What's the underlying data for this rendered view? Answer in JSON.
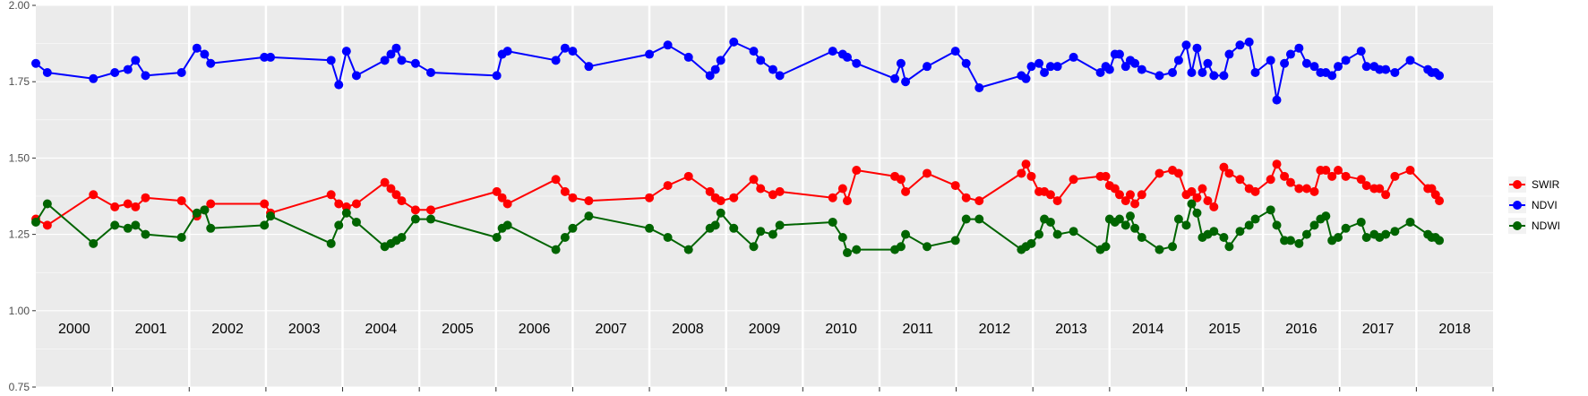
{
  "chart_data": {
    "type": "line",
    "title": "",
    "xlabel": "",
    "ylabel": "",
    "ylim": [
      0.75,
      2.0
    ],
    "y_ticks": [
      "0.75",
      "1.00",
      "1.25",
      "1.50",
      "1.75",
      "2.00"
    ],
    "grid": true,
    "legend_position": "right",
    "year_labels": [
      "2000",
      "2001",
      "2002",
      "2003",
      "2004",
      "2005",
      "2006",
      "2007",
      "2008",
      "2009",
      "2010",
      "2011",
      "2012",
      "2013",
      "2014",
      "2015",
      "2016",
      "2017",
      "2018"
    ],
    "xlim": [
      2000.0,
      2019.0
    ],
    "series": [
      {
        "name": "SWIR",
        "color": "#ff0000",
        "x": [
          2000.0,
          2000.15,
          2000.75,
          2001.03,
          2001.2,
          2001.3,
          2001.43,
          2001.9,
          2002.1,
          2002.2,
          2002.28,
          2002.98,
          2003.06,
          2003.85,
          2003.95,
          2004.05,
          2004.18,
          2004.55,
          2004.63,
          2004.7,
          2004.77,
          2004.95,
          2005.15,
          2006.01,
          2006.08,
          2006.15,
          2006.78,
          2006.9,
          2007.0,
          2007.21,
          2008.0,
          2008.24,
          2008.51,
          2008.79,
          2008.86,
          2008.93,
          2009.1,
          2009.36,
          2009.45,
          2009.61,
          2009.7,
          2010.39,
          2010.52,
          2010.58,
          2010.7,
          2011.2,
          2011.28,
          2011.34,
          2011.62,
          2011.99,
          2012.13,
          2012.3,
          2012.85,
          2012.91,
          2012.98,
          2013.08,
          2013.15,
          2013.23,
          2013.32,
          2013.53,
          2013.88,
          2013.95,
          2014.0,
          2014.07,
          2014.13,
          2014.21,
          2014.27,
          2014.33,
          2014.42,
          2014.65,
          2014.82,
          2014.9,
          2015.0,
          2015.07,
          2015.14,
          2015.21,
          2015.28,
          2015.36,
          2015.49,
          2015.56,
          2015.7,
          2015.82,
          2015.9,
          2016.1,
          2016.18,
          2016.28,
          2016.36,
          2016.47,
          2016.57,
          2016.67,
          2016.75,
          2016.82,
          2016.9,
          2016.98,
          2017.08,
          2017.28,
          2017.35,
          2017.45,
          2017.52,
          2017.6,
          2017.72,
          2017.92,
          2018.15,
          2018.2,
          2018.25,
          2018.3
        ],
        "y": [
          1.3,
          1.28,
          1.38,
          1.34,
          1.35,
          1.34,
          1.37,
          1.36,
          1.31,
          1.33,
          1.35,
          1.35,
          1.32,
          1.38,
          1.35,
          1.34,
          1.35,
          1.42,
          1.4,
          1.38,
          1.36,
          1.33,
          1.33,
          1.39,
          1.37,
          1.35,
          1.43,
          1.39,
          1.37,
          1.36,
          1.37,
          1.41,
          1.44,
          1.39,
          1.37,
          1.36,
          1.37,
          1.43,
          1.4,
          1.38,
          1.39,
          1.37,
          1.4,
          1.36,
          1.46,
          1.44,
          1.43,
          1.39,
          1.45,
          1.41,
          1.37,
          1.36,
          1.45,
          1.48,
          1.44,
          1.39,
          1.39,
          1.38,
          1.36,
          1.43,
          1.44,
          1.44,
          1.41,
          1.4,
          1.38,
          1.36,
          1.38,
          1.35,
          1.38,
          1.45,
          1.46,
          1.45,
          1.38,
          1.39,
          1.37,
          1.4,
          1.36,
          1.34,
          1.47,
          1.45,
          1.43,
          1.4,
          1.39,
          1.43,
          1.48,
          1.44,
          1.42,
          1.4,
          1.4,
          1.39,
          1.46,
          1.46,
          1.44,
          1.46,
          1.44,
          1.43,
          1.41,
          1.4,
          1.4,
          1.38,
          1.44,
          1.46,
          1.4,
          1.4,
          1.38,
          1.36
        ]
      },
      {
        "name": "NDVI",
        "color": "#0000ff",
        "x": [
          2000.0,
          2000.15,
          2000.75,
          2001.03,
          2001.2,
          2001.3,
          2001.43,
          2001.9,
          2002.1,
          2002.2,
          2002.28,
          2002.98,
          2003.06,
          2003.85,
          2003.95,
          2004.05,
          2004.18,
          2004.55,
          2004.63,
          2004.7,
          2004.77,
          2004.95,
          2005.15,
          2006.01,
          2006.08,
          2006.15,
          2006.78,
          2006.9,
          2007.0,
          2007.21,
          2008.0,
          2008.24,
          2008.51,
          2008.79,
          2008.86,
          2008.93,
          2009.1,
          2009.36,
          2009.45,
          2009.61,
          2009.7,
          2010.39,
          2010.52,
          2010.58,
          2010.7,
          2011.2,
          2011.28,
          2011.34,
          2011.62,
          2011.99,
          2012.13,
          2012.3,
          2012.85,
          2012.91,
          2012.98,
          2013.08,
          2013.15,
          2013.23,
          2013.32,
          2013.53,
          2013.88,
          2013.95,
          2014.0,
          2014.07,
          2014.13,
          2014.21,
          2014.27,
          2014.33,
          2014.42,
          2014.65,
          2014.82,
          2014.9,
          2015.0,
          2015.07,
          2015.14,
          2015.21,
          2015.28,
          2015.36,
          2015.49,
          2015.56,
          2015.7,
          2015.82,
          2015.9,
          2016.1,
          2016.18,
          2016.28,
          2016.36,
          2016.47,
          2016.57,
          2016.67,
          2016.75,
          2016.82,
          2016.9,
          2016.98,
          2017.08,
          2017.28,
          2017.35,
          2017.45,
          2017.52,
          2017.6,
          2017.72,
          2017.92,
          2018.15,
          2018.2,
          2018.25,
          2018.3
        ],
        "y": [
          1.81,
          1.78,
          1.76,
          1.78,
          1.79,
          1.82,
          1.77,
          1.78,
          1.86,
          1.84,
          1.81,
          1.83,
          1.83,
          1.82,
          1.74,
          1.85,
          1.77,
          1.82,
          1.84,
          1.86,
          1.82,
          1.81,
          1.78,
          1.77,
          1.84,
          1.85,
          1.82,
          1.86,
          1.85,
          1.8,
          1.84,
          1.87,
          1.83,
          1.77,
          1.79,
          1.82,
          1.88,
          1.85,
          1.82,
          1.79,
          1.77,
          1.85,
          1.84,
          1.83,
          1.81,
          1.76,
          1.81,
          1.75,
          1.8,
          1.85,
          1.81,
          1.73,
          1.77,
          1.76,
          1.8,
          1.81,
          1.78,
          1.8,
          1.8,
          1.83,
          1.78,
          1.8,
          1.79,
          1.84,
          1.84,
          1.8,
          1.82,
          1.81,
          1.79,
          1.77,
          1.78,
          1.82,
          1.87,
          1.78,
          1.86,
          1.78,
          1.81,
          1.77,
          1.77,
          1.84,
          1.87,
          1.88,
          1.78,
          1.82,
          1.69,
          1.81,
          1.84,
          1.86,
          1.81,
          1.8,
          1.78,
          1.78,
          1.77,
          1.8,
          1.82,
          1.85,
          1.8,
          1.8,
          1.79,
          1.79,
          1.78,
          1.82,
          1.79,
          1.78,
          1.78,
          1.77
        ]
      },
      {
        "name": "NDWI",
        "color": "#006400",
        "x": [
          2000.0,
          2000.15,
          2000.75,
          2001.03,
          2001.2,
          2001.3,
          2001.43,
          2001.9,
          2002.1,
          2002.2,
          2002.28,
          2002.98,
          2003.06,
          2003.85,
          2003.95,
          2004.05,
          2004.18,
          2004.55,
          2004.63,
          2004.7,
          2004.77,
          2004.95,
          2005.15,
          2006.01,
          2006.08,
          2006.15,
          2006.78,
          2006.9,
          2007.0,
          2007.21,
          2008.0,
          2008.24,
          2008.51,
          2008.79,
          2008.86,
          2008.93,
          2009.1,
          2009.36,
          2009.45,
          2009.61,
          2009.7,
          2010.39,
          2010.52,
          2010.58,
          2010.7,
          2011.2,
          2011.28,
          2011.34,
          2011.62,
          2011.99,
          2012.13,
          2012.3,
          2012.85,
          2012.91,
          2012.98,
          2013.08,
          2013.15,
          2013.23,
          2013.32,
          2013.53,
          2013.88,
          2013.95,
          2014.0,
          2014.07,
          2014.13,
          2014.21,
          2014.27,
          2014.33,
          2014.42,
          2014.65,
          2014.82,
          2014.9,
          2015.0,
          2015.07,
          2015.14,
          2015.21,
          2015.28,
          2015.36,
          2015.49,
          2015.56,
          2015.7,
          2015.82,
          2015.9,
          2016.1,
          2016.18,
          2016.28,
          2016.36,
          2016.47,
          2016.57,
          2016.67,
          2016.75,
          2016.82,
          2016.9,
          2016.98,
          2017.08,
          2017.28,
          2017.35,
          2017.45,
          2017.52,
          2017.6,
          2017.72,
          2017.92,
          2018.15,
          2018.2,
          2018.25,
          2018.3
        ],
        "y": [
          1.29,
          1.35,
          1.22,
          1.28,
          1.27,
          1.28,
          1.25,
          1.24,
          1.32,
          1.33,
          1.27,
          1.28,
          1.31,
          1.22,
          1.28,
          1.32,
          1.29,
          1.21,
          1.22,
          1.23,
          1.24,
          1.3,
          1.3,
          1.24,
          1.27,
          1.28,
          1.2,
          1.24,
          1.27,
          1.31,
          1.27,
          1.24,
          1.2,
          1.27,
          1.28,
          1.32,
          1.27,
          1.21,
          1.26,
          1.25,
          1.28,
          1.29,
          1.24,
          1.19,
          1.2,
          1.2,
          1.21,
          1.25,
          1.21,
          1.23,
          1.3,
          1.3,
          1.2,
          1.21,
          1.22,
          1.25,
          1.3,
          1.29,
          1.25,
          1.26,
          1.2,
          1.21,
          1.3,
          1.29,
          1.3,
          1.28,
          1.31,
          1.27,
          1.24,
          1.2,
          1.21,
          1.3,
          1.28,
          1.35,
          1.32,
          1.24,
          1.25,
          1.26,
          1.24,
          1.21,
          1.26,
          1.28,
          1.3,
          1.33,
          1.28,
          1.23,
          1.23,
          1.22,
          1.25,
          1.28,
          1.3,
          1.31,
          1.23,
          1.24,
          1.27,
          1.29,
          1.24,
          1.25,
          1.24,
          1.25,
          1.26,
          1.29,
          1.25,
          1.24,
          1.24,
          1.23
        ]
      }
    ]
  }
}
